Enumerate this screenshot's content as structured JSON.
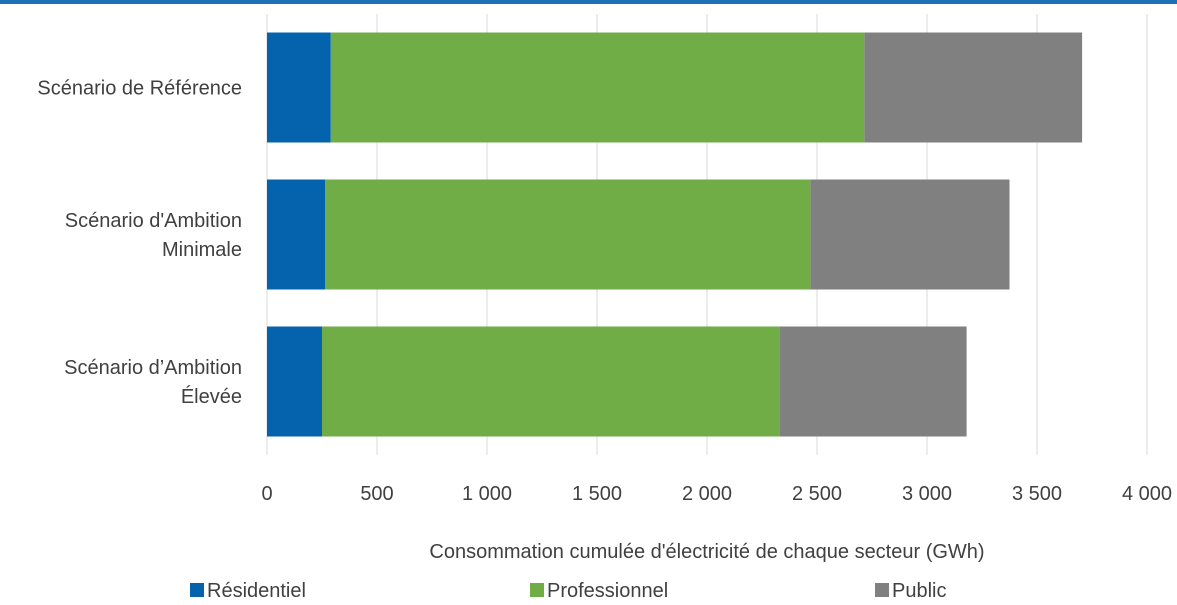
{
  "chart_data": {
    "type": "bar",
    "orientation": "horizontal",
    "stacked": true,
    "categories": [
      [
        "Scénario de Référence"
      ],
      [
        "Scénario d'Ambition",
        "Minimale"
      ],
      [
        "Scénario d’Ambition",
        "Élevée"
      ]
    ],
    "series": [
      {
        "name": "Résidentiel",
        "color": "#0563AE",
        "values": [
          290,
          265,
          250
        ]
      },
      {
        "name": "Professionnel",
        "color": "#70AD47",
        "values": [
          2425,
          2205,
          2080
        ]
      },
      {
        "name": "Public",
        "color": "#808080",
        "values": [
          990,
          905,
          850
        ]
      }
    ],
    "xlim": [
      0,
      4000
    ],
    "x_ticks": [
      "0",
      "500",
      "1 000",
      "1 500",
      "2 000",
      "2 500",
      "3 000",
      "3 500",
      "4 000"
    ],
    "xlabel": "Consommation cumulée d'électricité de chaque secteur (GWh)",
    "grid": "vertical",
    "legend": "bottom"
  },
  "theme": {
    "top_rule_color": "#1F6FB5",
    "gridline_color": "#D9D9D9",
    "text_color": "#404040"
  }
}
